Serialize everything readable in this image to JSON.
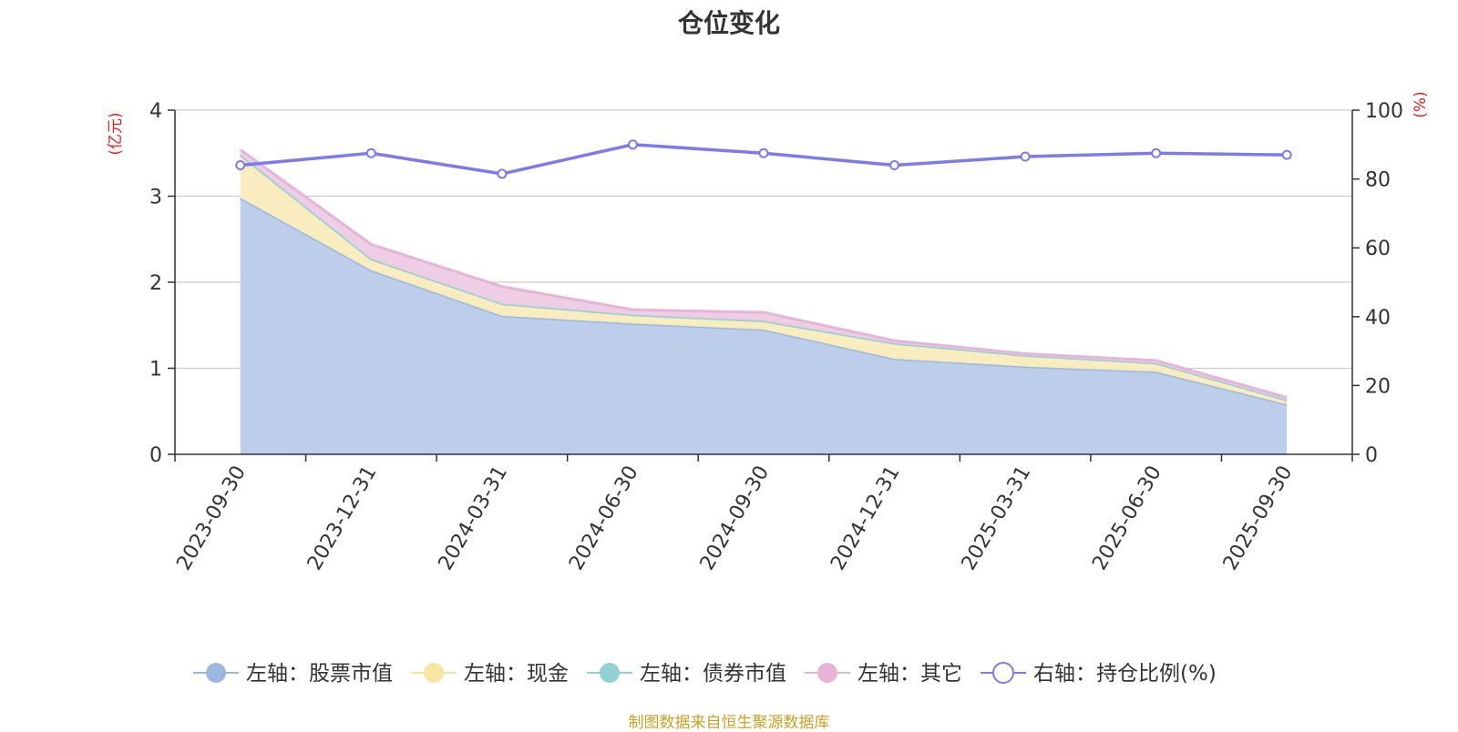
{
  "chart_data": {
    "type": "area",
    "title": "仓位变化",
    "categories": [
      "2023-09-30",
      "2023-12-31",
      "2024-03-31",
      "2024-06-30",
      "2024-09-30",
      "2024-12-31",
      "2025-03-31",
      "2025-06-30",
      "2025-09-30"
    ],
    "left_axis": {
      "unit_label": "(亿元)",
      "ylim": [
        0,
        4
      ],
      "ticks": [
        0,
        1,
        2,
        3,
        4
      ]
    },
    "right_axis": {
      "unit_label": "(%)",
      "ylim": [
        0,
        100
      ],
      "ticks": [
        0,
        20,
        40,
        60,
        80,
        100
      ]
    },
    "series": [
      {
        "name": "左轴：股票市值",
        "axis": "left",
        "kind": "stacked-area",
        "color": "#9bb8e0",
        "fill": "#b8cbe9",
        "values": [
          2.98,
          2.14,
          1.61,
          1.52,
          1.45,
          1.11,
          1.02,
          0.96,
          0.58
        ]
      },
      {
        "name": "左轴：现金",
        "axis": "left",
        "kind": "stacked-area",
        "color": "#f7e6a2",
        "fill": "#f9ecbc",
        "values": [
          0.5,
          0.13,
          0.14,
          0.1,
          0.1,
          0.18,
          0.13,
          0.1,
          0.05
        ]
      },
      {
        "name": "左轴：债券市值",
        "axis": "left",
        "kind": "stacked-area",
        "color": "#92d0d3",
        "fill": "#b5dfe1",
        "values": [
          0,
          0,
          0,
          0,
          0,
          0,
          0,
          0,
          0
        ]
      },
      {
        "name": "左轴：其它",
        "axis": "left",
        "kind": "stacked-area",
        "color": "#e7b3d9",
        "fill": "#eccbe4",
        "values": [
          0.06,
          0.17,
          0.2,
          0.06,
          0.1,
          0.03,
          0.02,
          0.03,
          0.03
        ]
      },
      {
        "name": "右轴：持仓比例(%)",
        "axis": "right",
        "kind": "line",
        "color": "#7b7bef",
        "values": [
          84.0,
          87.5,
          81.5,
          90.0,
          87.5,
          84.0,
          86.5,
          87.5,
          87.0
        ]
      }
    ],
    "grid": true,
    "legend_position": "bottom"
  },
  "footer_note": "制图数据来自恒生聚源数据库"
}
